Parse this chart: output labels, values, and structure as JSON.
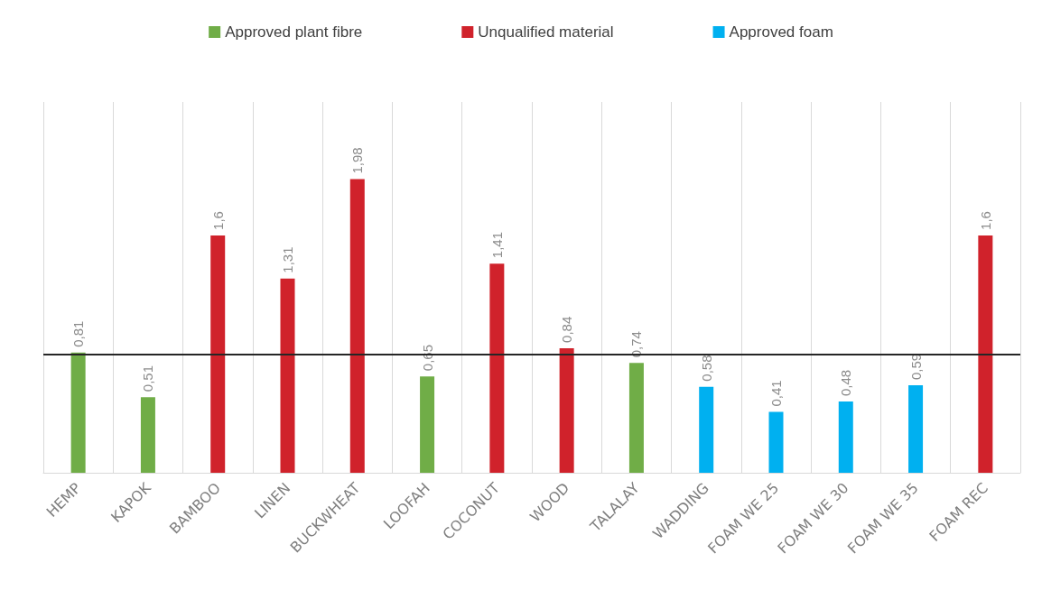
{
  "chart_data": {
    "type": "bar",
    "stacked": true,
    "categories": [
      "HEMP",
      "KAPOK",
      "BAMBOO",
      "LINEN",
      "BUCKWHEAT",
      "LOOFAH",
      "COCONUT",
      "WOOD",
      "TALALAY",
      "WADDING",
      "FOAM WE 25",
      "FOAM WE 30",
      "FOAM WE 35",
      "FOAM REC"
    ],
    "series": [
      {
        "name": "Approved plant fibre",
        "color": "#70ad47",
        "values": [
          0.81,
          0.51,
          null,
          null,
          null,
          0.65,
          null,
          null,
          0.74,
          null,
          null,
          null,
          null,
          null
        ],
        "value_labels": [
          "0,81",
          "0,51",
          null,
          null,
          null,
          "0,65",
          null,
          null,
          "0,74",
          null,
          null,
          null,
          null,
          null
        ]
      },
      {
        "name": "Unqualified material",
        "color": "#d0222b",
        "values": [
          null,
          null,
          1.6,
          1.31,
          1.98,
          null,
          1.41,
          0.84,
          null,
          null,
          null,
          null,
          null,
          1.6
        ],
        "value_labels": [
          null,
          null,
          "1,6",
          "1,31",
          "1,98",
          null,
          "1,41",
          "0,84",
          null,
          null,
          null,
          null,
          null,
          "1,6"
        ]
      },
      {
        "name": "Approved foam",
        "color": "#00b0f0",
        "values": [
          null,
          null,
          null,
          null,
          null,
          null,
          null,
          null,
          null,
          0.58,
          0.41,
          0.48,
          0.59,
          null
        ],
        "value_labels": [
          null,
          null,
          null,
          null,
          null,
          null,
          null,
          null,
          null,
          "0,58",
          "0,41",
          "0,48",
          "0,59",
          null
        ]
      }
    ],
    "ylim": [
      0,
      2.5
    ],
    "tick_labels": "x",
    "grid": "x",
    "legend": "top",
    "ref_lines": [
      {
        "axis": "y",
        "value": 0.8,
        "color": "#262626"
      }
    ]
  }
}
